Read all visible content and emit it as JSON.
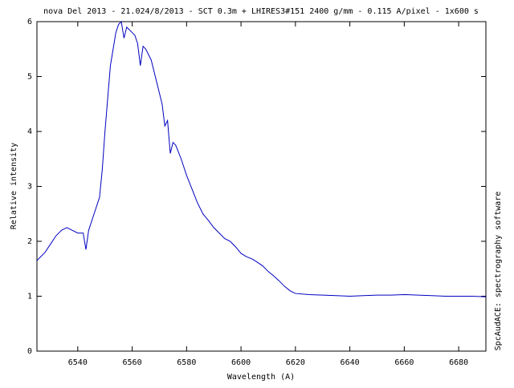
{
  "chart_data": {
    "type": "line",
    "title": "nova Del 2013 - 21.024/8/2013 - SCT 0.3m + LHIRES3#151 2400 g/mm - 0.115 A/pixel - 1x600 s",
    "x_label": "Wavelength (A)",
    "y_label": "Relative intensity",
    "side_note": "SpcAudACE: spectrography software",
    "x": [
      6525,
      6528,
      6530,
      6532,
      6534,
      6536,
      6538,
      6540,
      6542,
      6543,
      6544,
      6546,
      6548,
      6549,
      6550,
      6551,
      6552,
      6553,
      6554,
      6555,
      6556,
      6557,
      6558,
      6559,
      6560,
      6561,
      6562,
      6563,
      6564,
      6565,
      6566,
      6567,
      6568,
      6570,
      6571,
      6572,
      6573,
      6574,
      6575,
      6576,
      6578,
      6580,
      6582,
      6584,
      6586,
      6588,
      6590,
      6592,
      6594,
      6596,
      6598,
      6600,
      6602,
      6604,
      6606,
      6608,
      6610,
      6612,
      6614,
      6616,
      6618,
      6620,
      6625,
      6630,
      6635,
      6640,
      6645,
      6650,
      6655,
      6660,
      6665,
      6670,
      6675,
      6680,
      6685,
      6690
    ],
    "series": [
      {
        "name": "spectrum",
        "color": "#0000c0",
        "values": [
          1.65,
          1.8,
          1.95,
          2.1,
          2.2,
          2.25,
          2.2,
          2.15,
          2.15,
          1.85,
          2.2,
          2.5,
          2.8,
          3.3,
          4.0,
          4.6,
          5.2,
          5.5,
          5.8,
          5.95,
          6.0,
          5.7,
          5.9,
          5.85,
          5.8,
          5.75,
          5.6,
          5.2,
          5.55,
          5.5,
          5.4,
          5.3,
          5.1,
          4.7,
          4.5,
          4.1,
          4.2,
          3.6,
          3.8,
          3.75,
          3.5,
          3.2,
          2.95,
          2.7,
          2.5,
          2.38,
          2.25,
          2.15,
          2.05,
          2.0,
          1.9,
          1.78,
          1.72,
          1.68,
          1.62,
          1.55,
          1.45,
          1.37,
          1.28,
          1.18,
          1.1,
          1.05,
          1.03,
          1.02,
          1.01,
          1.0,
          1.01,
          1.02,
          1.02,
          1.03,
          1.02,
          1.01,
          1.0,
          1.0,
          1.0,
          0.99
        ]
      }
    ],
    "xlim": [
      6525,
      6690
    ],
    "ylim": [
      0,
      6
    ],
    "xticks": [
      6540,
      6560,
      6580,
      6600,
      6620,
      6640,
      6660,
      6680
    ],
    "yticks": [
      0,
      1,
      2,
      3,
      4,
      5,
      6
    ],
    "grid": false
  }
}
